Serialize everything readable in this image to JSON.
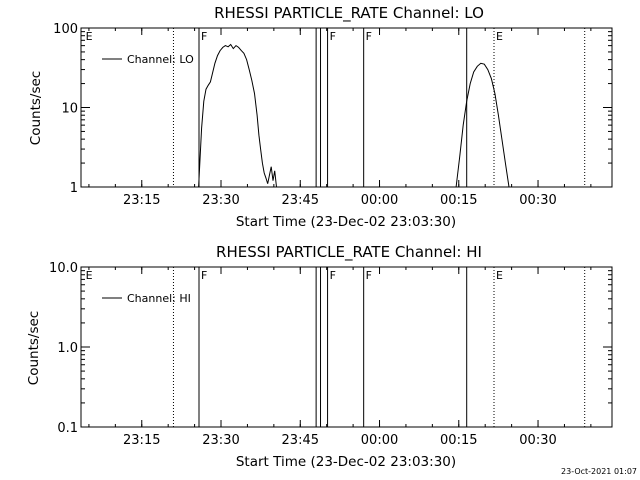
{
  "footer": {
    "timestamp": "23-Oct-2021 01:07"
  },
  "chart_data": [
    {
      "type": "line",
      "title": "RHESSI PARTICLE_RATE Channel: LO",
      "xlabel": "Start Time (23-Dec-02 23:03:30)",
      "ylabel": "Counts/sec",
      "yscale": "log",
      "ylim": [
        1,
        100
      ],
      "xlim": [
        "23:03:30",
        "00:44:00"
      ],
      "xticks": [
        "23:15",
        "23:30",
        "23:45",
        "00:00",
        "00:15",
        "00:30"
      ],
      "yticks": [
        "1",
        "10",
        "100"
      ],
      "legend": {
        "position": "top-left",
        "entries": [
          "Channel: LO"
        ]
      },
      "events": [
        {
          "time": "23:04:00",
          "flag": "E",
          "style": "none"
        },
        {
          "time": "23:21:00",
          "flag": "",
          "style": "dotted"
        },
        {
          "time": "23:25:50",
          "flag": "F",
          "style": "solid"
        },
        {
          "time": "23:48:00",
          "flag": "",
          "style": "solid"
        },
        {
          "time": "23:48:50",
          "flag": "",
          "style": "solid"
        },
        {
          "time": "23:50:10",
          "flag": "F",
          "style": "solid"
        },
        {
          "time": "23:57:00",
          "flag": "F",
          "style": "solid"
        },
        {
          "time": "00:16:30",
          "flag": "",
          "style": "solid"
        },
        {
          "time": "00:21:40",
          "flag": "E",
          "style": "dotted"
        },
        {
          "time": "00:38:50",
          "flag": "",
          "style": "dotted"
        }
      ],
      "series": [
        {
          "name": "Channel: LO",
          "color": "#000000",
          "segments": [
            {
              "x": [
                "23:25:45",
                "23:26:20",
                "23:26:45",
                "23:27:10",
                "23:27:35",
                "23:28:00",
                "23:28:20",
                "23:28:50",
                "23:29:20",
                "23:29:50",
                "23:30:20",
                "23:30:50",
                "23:31:20",
                "23:31:50",
                "23:32:20",
                "23:32:50",
                "23:33:20",
                "23:33:50",
                "23:34:20",
                "23:34:50",
                "23:35:20",
                "23:35:50",
                "23:36:20",
                "23:36:50",
                "23:37:10",
                "23:37:30",
                "23:37:50",
                "23:38:10",
                "23:38:30",
                "23:38:50",
                "23:39:10",
                "23:39:30",
                "23:39:50",
                "23:40:10",
                "23:40:30"
              ],
              "y": [
                1.0,
                5.5,
                12,
                17,
                19,
                21,
                26,
                36,
                45,
                52,
                57,
                60,
                58,
                62,
                55,
                60,
                57,
                52,
                48,
                40,
                30,
                22,
                15,
                8,
                4.5,
                3.0,
                2.0,
                1.5,
                1.3,
                1.1,
                1.4,
                1.8,
                1.2,
                1.6,
                1.0
              ]
            },
            {
              "x": [
                "00:14:30",
                "00:15:10",
                "00:15:50",
                "00:16:30",
                "00:17:10",
                "00:17:50",
                "00:18:30",
                "00:19:10",
                "00:19:50",
                "00:20:30",
                "00:21:10",
                "00:21:50",
                "00:22:30",
                "00:23:10",
                "00:23:50",
                "00:24:30"
              ],
              "y": [
                1.0,
                2.4,
                6,
                12,
                20,
                28,
                33,
                36,
                35,
                30,
                23,
                15,
                8,
                4,
                2,
                1.0
              ]
            }
          ]
        }
      ]
    },
    {
      "type": "line",
      "title": "RHESSI PARTICLE_RATE Channel: HI",
      "xlabel": "Start Time (23-Dec-02 23:03:30)",
      "ylabel": "Counts/sec",
      "yscale": "log",
      "ylim": [
        0.1,
        10
      ],
      "xlim": [
        "23:03:30",
        "00:44:00"
      ],
      "xticks": [
        "23:15",
        "23:30",
        "23:45",
        "00:00",
        "00:15",
        "00:30"
      ],
      "yticks": [
        "0.1",
        "1.0",
        "10.0"
      ],
      "legend": {
        "position": "top-left",
        "entries": [
          "Channel: HI"
        ]
      },
      "events": [
        {
          "time": "23:04:00",
          "flag": "E",
          "style": "none"
        },
        {
          "time": "23:21:00",
          "flag": "",
          "style": "dotted"
        },
        {
          "time": "23:25:50",
          "flag": "F",
          "style": "solid"
        },
        {
          "time": "23:48:00",
          "flag": "",
          "style": "solid"
        },
        {
          "time": "23:48:50",
          "flag": "",
          "style": "solid"
        },
        {
          "time": "23:50:10",
          "flag": "F",
          "style": "solid"
        },
        {
          "time": "23:57:00",
          "flag": "F",
          "style": "solid"
        },
        {
          "time": "00:16:30",
          "flag": "",
          "style": "solid"
        },
        {
          "time": "00:21:40",
          "flag": "E",
          "style": "dotted"
        },
        {
          "time": "00:38:50",
          "flag": "",
          "style": "dotted"
        }
      ],
      "series": [
        {
          "name": "Channel: HI",
          "color": "#000000",
          "segments": []
        }
      ]
    }
  ]
}
